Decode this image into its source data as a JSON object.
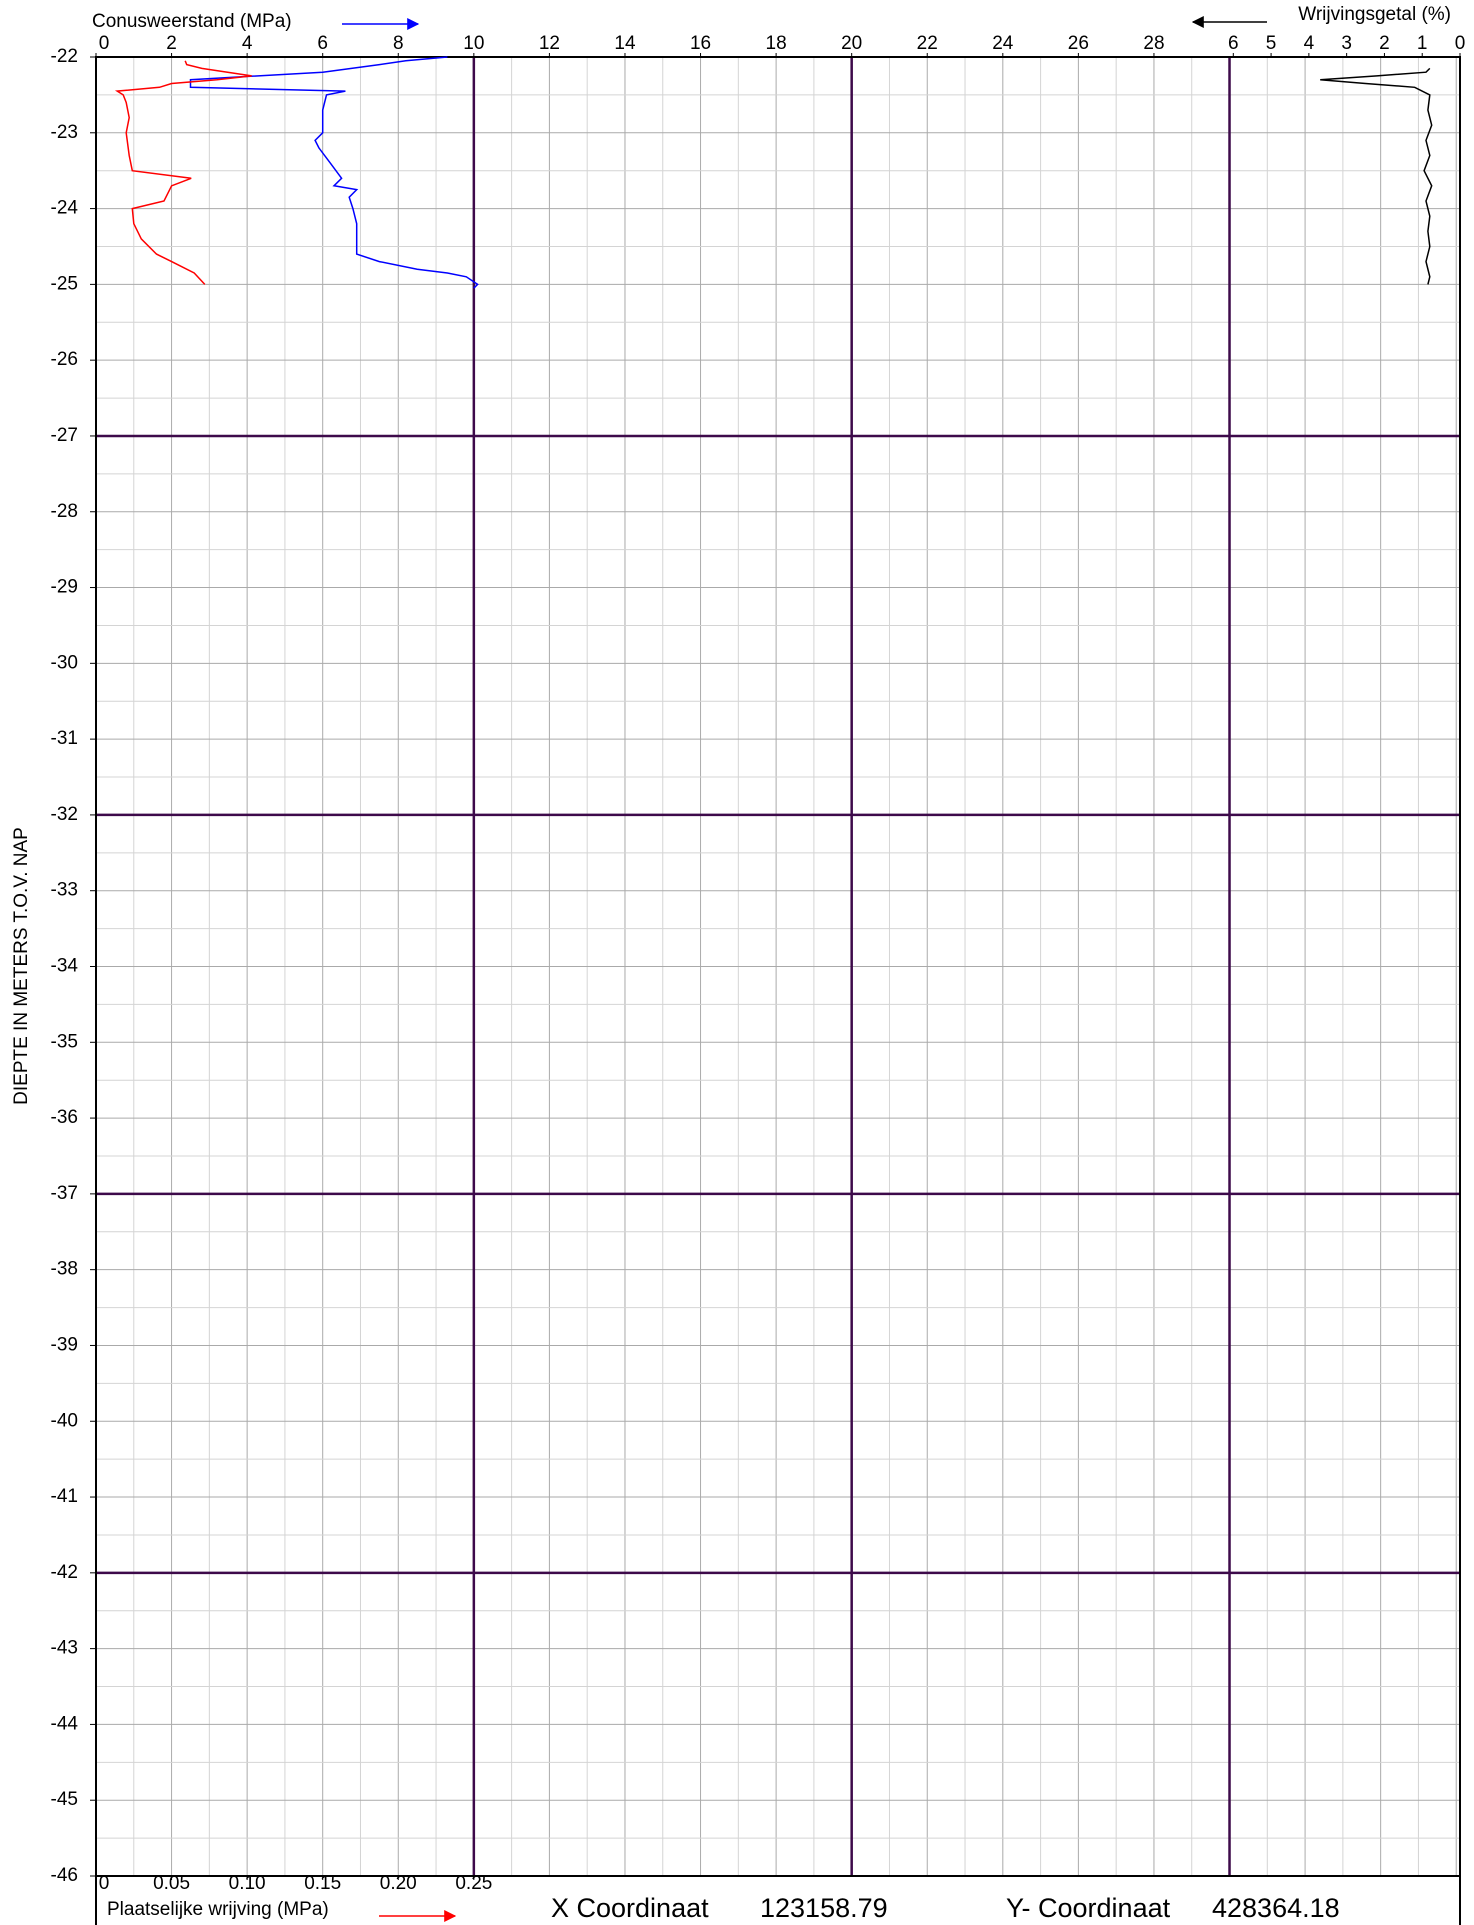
{
  "chart_data": {
    "type": "line",
    "y_label": "DIEPTE IN METERS T.O.V.   NAP",
    "ylim": [
      -22,
      -46
    ],
    "yticks": [
      -22,
      -23,
      -24,
      -25,
      -26,
      -27,
      -28,
      -29,
      -30,
      -31,
      -32,
      -33,
      -34,
      -35,
      -36,
      -37,
      -38,
      -39,
      -40,
      -41,
      -42,
      -43,
      -44,
      -45,
      -46
    ],
    "grid": {
      "minor_x": 1,
      "minor_y": 0.5,
      "major_x": [
        10,
        20,
        30
      ],
      "major_y": [
        -27,
        -32,
        -37,
        -42
      ],
      "major_color": "#3d0a4a"
    },
    "axes": {
      "cone": {
        "label": "Conusweerstand (MPa)",
        "color": "#0000ff",
        "xlim": [
          0,
          36.1
        ],
        "xticks": [
          0,
          2,
          4,
          6,
          8,
          10,
          12,
          14,
          16,
          18,
          20,
          22,
          24,
          26,
          28
        ]
      },
      "ratio": {
        "label": "Wrijvingsgetal (%)",
        "color": "#000000",
        "xlim": [
          36.1,
          0
        ],
        "xticks": [
          6,
          5,
          4,
          3,
          2,
          1,
          0
        ]
      },
      "friction": {
        "label": "Plaatselijke wrijving (MPa)",
        "color": "#ff0000",
        "xlim": [
          0,
          0.9025
        ],
        "xticks": [
          0,
          0.05,
          {
            "value": 0.1,
            "label": "0.10"
          },
          0.15,
          {
            "value": 0.2,
            "label": "0.20"
          },
          0.25
        ]
      }
    },
    "series": [
      {
        "axis": "cone",
        "color": "#0000ff",
        "depth": [
          -22.0,
          -22.05,
          -22.1,
          -22.2,
          -22.3,
          -22.35,
          -22.4,
          -22.45,
          -22.5,
          -22.7,
          -23.0,
          -23.1,
          -23.2,
          -23.4,
          -23.6,
          -23.7,
          -23.75,
          -23.85,
          -24.0,
          -24.2,
          -24.4,
          -24.6,
          -24.7,
          -24.8,
          -24.85,
          -24.9,
          -25.0,
          -25.05
        ],
        "values": [
          9.3,
          8.2,
          7.5,
          6.0,
          2.5,
          2.5,
          2.5,
          6.6,
          6.1,
          6.0,
          6.0,
          5.8,
          5.9,
          6.2,
          6.5,
          6.3,
          6.9,
          6.7,
          6.8,
          6.9,
          6.9,
          6.9,
          7.5,
          8.5,
          9.3,
          9.8,
          10.1,
          10.0
        ]
      },
      {
        "axis": "friction",
        "color": "#ff0000",
        "depth": [
          -22.05,
          -22.1,
          -22.15,
          -22.25,
          -22.3,
          -22.35,
          -22.4,
          -22.45,
          -22.5,
          -22.6,
          -22.8,
          -23.0,
          -23.3,
          -23.5,
          -23.6,
          -23.7,
          -23.9,
          -24.0,
          -24.2,
          -24.4,
          -24.6,
          -24.7,
          -24.85,
          -25.0
        ],
        "values": [
          0.059,
          0.06,
          0.07,
          0.103,
          0.08,
          0.05,
          0.042,
          0.014,
          0.018,
          0.02,
          0.022,
          0.02,
          0.022,
          0.024,
          0.063,
          0.05,
          0.045,
          0.024,
          0.025,
          0.03,
          0.04,
          0.05,
          0.065,
          0.072
        ]
      },
      {
        "axis": "ratio",
        "color": "#000000",
        "depth": [
          -22.15,
          -22.2,
          -22.25,
          -22.3,
          -22.35,
          -22.4,
          -22.5,
          -22.7,
          -22.9,
          -23.1,
          -23.3,
          -23.5,
          -23.7,
          -23.9,
          -24.1,
          -24.3,
          -24.5,
          -24.7,
          -24.9,
          -25.0
        ],
        "values": [
          0.8,
          0.9,
          2.2,
          3.7,
          2.5,
          1.2,
          0.8,
          0.85,
          0.75,
          0.9,
          0.8,
          0.95,
          0.75,
          0.9,
          0.8,
          0.85,
          0.8,
          0.9,
          0.8,
          0.85
        ]
      }
    ]
  },
  "coordinates": {
    "x_label": "X Coordinaat",
    "x": 123158.79,
    "y_label": "Y- Coordinaat",
    "y": 428364.18
  }
}
